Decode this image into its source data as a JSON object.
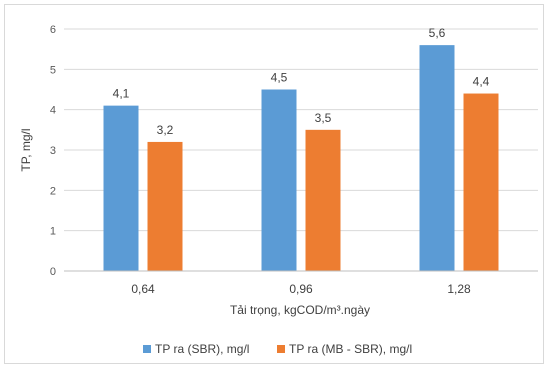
{
  "chart_data": {
    "type": "bar",
    "title": "",
    "xlabel": "Tải trọng, kgCOD/m³.ngày",
    "ylabel": "TP, mg/l",
    "categories": [
      "0,64",
      "0,96",
      "1,28"
    ],
    "ylim": [
      0,
      6
    ],
    "yticks": [
      "0",
      "1",
      "2",
      "3",
      "4",
      "5",
      "6"
    ],
    "grid": true,
    "legend_position": "bottom",
    "series": [
      {
        "name": "TP ra (SBR), mg/l",
        "color": "#5b9bd5",
        "values": [
          4.1,
          4.5,
          5.6
        ],
        "labels": [
          "4,1",
          "4,5",
          "5,6"
        ]
      },
      {
        "name": "TP ra (MB - SBR), mg/l",
        "color": "#ed7d31",
        "values": [
          3.2,
          3.5,
          4.4
        ],
        "labels": [
          "3,2",
          "3,5",
          "4,4"
        ]
      }
    ]
  }
}
